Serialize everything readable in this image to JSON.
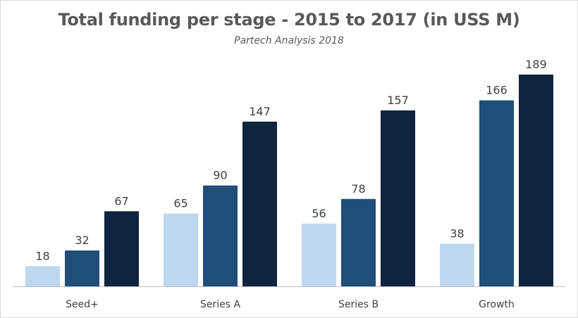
{
  "chart_data": {
    "type": "bar",
    "title": "Total funding per stage - 2015 to 2017 (in USS M)",
    "subtitle": "Partech Analysis 2018",
    "xlabel": "",
    "ylabel": "",
    "categories": [
      "Seed+",
      "Series A",
      "Series B",
      "Growth"
    ],
    "series": [
      {
        "values": [
          18,
          65,
          56,
          38
        ],
        "color": "#bdd7ee"
      },
      {
        "values": [
          32,
          90,
          78,
          166
        ],
        "color": "#1f4e79"
      },
      {
        "values": [
          67,
          147,
          157,
          189
        ],
        "color": "#0f243e"
      }
    ],
    "ylim": [
      0,
      189
    ],
    "grid": false,
    "legend": "none",
    "data_labels": true
  }
}
